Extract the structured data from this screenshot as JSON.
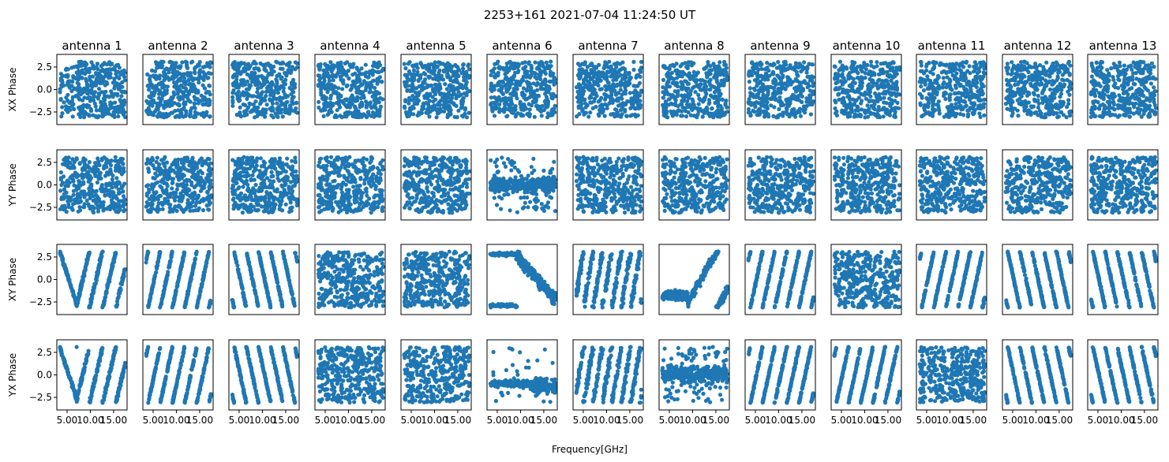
{
  "figure": {
    "title": "2253+161 2021-07-04 11:24:50 UT",
    "xlabel": "Frequency[GHz]"
  },
  "chart_data": {
    "type": "scatter",
    "grid": false,
    "point_color": "#1f77b4",
    "columns": [
      "antenna 1",
      "antenna 2",
      "antenna 3",
      "antenna 4",
      "antenna 5",
      "antenna 6",
      "antenna 7",
      "antenna 8",
      "antenna 9",
      "antenna 10",
      "antenna 11",
      "antenna 12",
      "antenna 13"
    ],
    "rows": [
      "XX Phase",
      "YY Phase",
      "XY Phase",
      "YX Phase"
    ],
    "xlim": [
      2.8,
      17.9
    ],
    "ylim": [
      -3.9,
      3.9
    ],
    "xticks": [
      5.0,
      10.0,
      15.0
    ],
    "xtick_labels": [
      "5.00",
      "10.00",
      "15.00"
    ],
    "yticks": [
      -2.5,
      0.0,
      2.5
    ],
    "ytick_labels": [
      "−2.5",
      "0.0",
      "2.5"
    ],
    "panel_patterns": [
      [
        "random",
        "random",
        "random",
        "random",
        "random",
        "random",
        "random",
        "random",
        "random",
        "random",
        "random",
        "random",
        "random"
      ],
      [
        "random",
        "random",
        "random",
        "random",
        "random",
        "band",
        "random",
        "random",
        "random",
        "random",
        "random",
        "random",
        "random"
      ],
      [
        "vshape",
        "stripes_up",
        "stripes_down",
        "random",
        "random",
        "sigmoid",
        "stripes_fine",
        "arc",
        "stripes_up",
        "random",
        "stripes_up",
        "stripes_down",
        "stripes_down"
      ],
      [
        "vshape",
        "stripes_up",
        "stripes_down",
        "random",
        "random",
        "band_low",
        "stripes_fine",
        "band",
        "stripes_up",
        "stripes_up",
        "random",
        "stripes_down",
        "stripes_down"
      ]
    ]
  }
}
